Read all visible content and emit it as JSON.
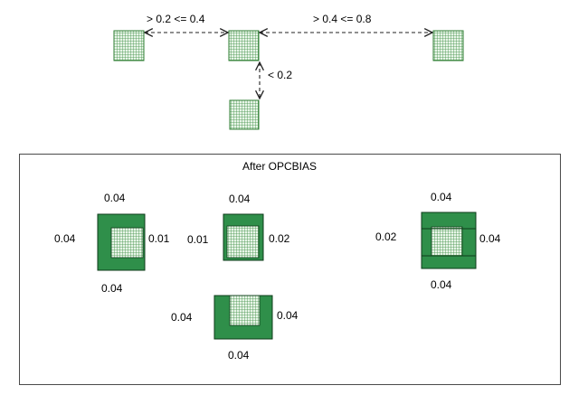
{
  "colors": {
    "square_fill": "#e8f5e8",
    "square_grid": "#3f8f45",
    "square_border": "#2e7d32",
    "bias_fill": "#2f8f4a",
    "bias_edge": "#0e3b1a",
    "arrow": "#222222",
    "panel_border": "#4a4a4a"
  },
  "icons": {
    "spacing_arrow": "dashed-double-arrow",
    "pattern_square": "grid-hatched-square"
  },
  "spacing_diagram": {
    "labels": {
      "left_gap": "> 0.2 <= 0.4",
      "right_gap": "> 0.4 <= 0.8",
      "vertical_gap": "< 0.2"
    }
  },
  "panel": {
    "title": "After OPCBIAS",
    "shape1": {
      "top": "0.04",
      "left": "0.04",
      "right": "0.01",
      "bottom": "0.04"
    },
    "shape2": {
      "top": "0.04",
      "left": "0.01",
      "right": "0.02"
    },
    "shape3": {
      "top": "0.04",
      "left": "0.02",
      "right": "0.04",
      "bottom": "0.04"
    },
    "shape4": {
      "left": "0.04",
      "right": "0.04",
      "bottom": "0.04"
    }
  }
}
